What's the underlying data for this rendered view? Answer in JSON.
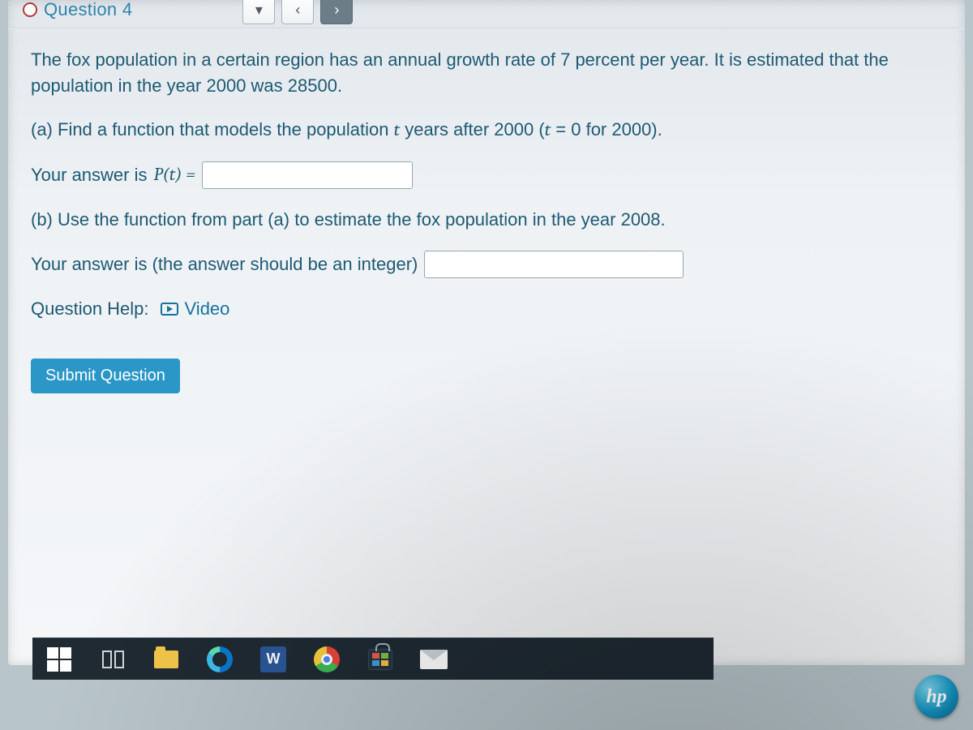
{
  "header": {
    "question_label": "Question 4"
  },
  "problem": {
    "intro": "The fox population in a certain region has an annual growth rate of 7 percent per year. It is estimated that the population in the year 2000 was 28500.",
    "part_a_prompt": "(a) Find a function that models the population",
    "part_a_tail": "years after 2000 (",
    "part_a_tail2": " = 0 for 2000).",
    "your_answer_is": "Your answer is ",
    "pt_label": "P(t) = ",
    "t_var": "t",
    "part_b": "(b) Use the function from part (a) to estimate the fox population in the year 2008.",
    "part_b_hint": "Your answer is (the answer should be an integer)"
  },
  "help": {
    "label": "Question Help:",
    "video": "Video"
  },
  "actions": {
    "submit": "Submit Question"
  },
  "taskbar": {
    "word_glyph": "W"
  },
  "brand": {
    "hp": "hp"
  },
  "colors": {
    "text": "#1d5a73",
    "button": "#2a97c7",
    "link": "#15729c",
    "taskbar": "#1f2a33"
  }
}
